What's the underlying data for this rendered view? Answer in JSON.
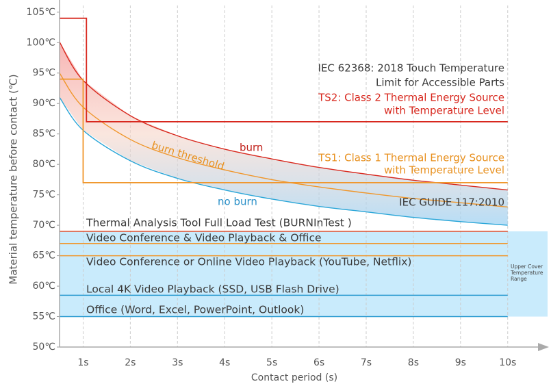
{
  "chart_data": {
    "type": "line",
    "x_label": "Contact period  (s)",
    "y_label": "Material temperature before contact  (℃)",
    "xlim": [
      0.5,
      10.7
    ],
    "ylim": [
      50,
      107
    ],
    "xticks": [
      {
        "value": 1,
        "label": "1s"
      },
      {
        "value": 2,
        "label": "2s"
      },
      {
        "value": 3,
        "label": "3s"
      },
      {
        "value": 4,
        "label": "4s"
      },
      {
        "value": 5,
        "label": "5s"
      },
      {
        "value": 6,
        "label": "6s"
      },
      {
        "value": 7,
        "label": "7s"
      },
      {
        "value": 8,
        "label": "8s"
      },
      {
        "value": 9,
        "label": "9s"
      },
      {
        "value": 10,
        "label": "10s"
      }
    ],
    "yticks": [
      {
        "value": 50,
        "label": "50℃"
      },
      {
        "value": 55,
        "label": "55℃"
      },
      {
        "value": 60,
        "label": "60℃"
      },
      {
        "value": 65,
        "label": "65℃"
      },
      {
        "value": 70,
        "label": "70℃"
      },
      {
        "value": 75,
        "label": "75℃"
      },
      {
        "value": 80,
        "label": "80℃"
      },
      {
        "value": 85,
        "label": "85℃"
      },
      {
        "value": 90,
        "label": "90℃"
      },
      {
        "value": 95,
        "label": "95℃"
      },
      {
        "value": 100,
        "label": "100℃"
      },
      {
        "value": 105,
        "label": "105℃"
      }
    ],
    "grid": "x",
    "series": [
      {
        "color": "#d8281e",
        "x": [
          0.5,
          1,
          2,
          3,
          4,
          5,
          6,
          7,
          8,
          9,
          10
        ],
        "values": [
          100.1,
          93.8,
          88.0,
          84.7,
          82.5,
          80.9,
          79.5,
          78.4,
          77.4,
          76.6,
          75.8
        ]
      },
      {
        "color": "#f0962a",
        "x": [
          0.5,
          1,
          2,
          3,
          4,
          5,
          6,
          7,
          8,
          9,
          10
        ],
        "values": [
          95,
          89.4,
          84.1,
          81.1,
          79.1,
          77.5,
          76.3,
          75.3,
          74.4,
          73.7,
          73
        ]
      },
      {
        "color": "#2aa6d8",
        "x": [
          0.5,
          1,
          2,
          3,
          4,
          5,
          6,
          7,
          8,
          9,
          10
        ],
        "values": [
          91,
          85.6,
          80.6,
          77.7,
          75.8,
          74.3,
          73.1,
          72.2,
          71.3,
          70.6,
          70
        ]
      },
      {
        "color": "#d8281e",
        "x": [
          0.5,
          1.07,
          1.07,
          10
        ],
        "values": [
          104,
          104,
          87,
          87
        ]
      },
      {
        "color": "#f0962a",
        "x": [
          0.5,
          1,
          1,
          10
        ],
        "values": [
          94,
          94,
          77,
          77
        ]
      }
    ],
    "reference_lines": [
      {
        "label": "Thermal Analysis Tool Full Load Test (BURNInTest )",
        "value": 69,
        "color": "#e0502e"
      },
      {
        "label": "Video Conference & Video Playback & Office",
        "value": 67,
        "color": "#f0962a"
      },
      {
        "label": "Video Conference or Online Video Playback (YouTube, Netflix)",
        "value": 65,
        "color": "#f0962a"
      },
      {
        "label": "Local 4K Video Playback (SSD, USB Flash Drive)",
        "value": 58.5,
        "color": "#2a9ad0"
      },
      {
        "label": "Office (Word, Excel, PowerPoint, Outlook)",
        "value": 55,
        "color": "#2a9ad0"
      }
    ],
    "band": {
      "range": [
        55,
        69
      ],
      "color": "#bfe8fb",
      "label_lines": [
        "Upper Cover",
        "Temperature",
        "Range"
      ]
    },
    "annotations": [
      {
        "text": "IEC 62368: 2018 Touch Temperature",
        "color": "#3a3a3a"
      },
      {
        "text": "Limit for Accessible Parts",
        "color": "#3a3a3a"
      },
      {
        "text": "TS2: Class 2 Thermal Energy Source",
        "color": "#d8281e"
      },
      {
        "text": "with Temperature Level",
        "color": "#d8281e"
      },
      {
        "text": "burn",
        "color": "#c0201a"
      },
      {
        "text": "burn threshold",
        "color": "#e8901e"
      },
      {
        "text": "TS1: Class 1 Thermal Energy Source",
        "color": "#e8901e"
      },
      {
        "text": "with Temperature Level",
        "color": "#e8901e"
      },
      {
        "text": "no burn",
        "color": "#2a90c8"
      },
      {
        "text": "IEC GUIDE 117:2010",
        "color": "#3a3a3a"
      }
    ]
  }
}
